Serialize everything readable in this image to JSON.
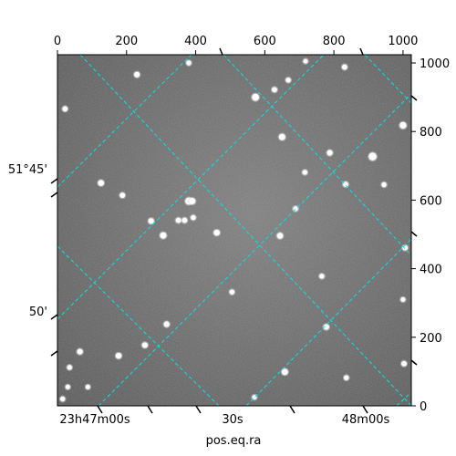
{
  "chart_data": {
    "type": "scatter",
    "title": "",
    "xlabel": "pos.eq.ra",
    "ylabel": "",
    "pixel_axes": {
      "xlim": [
        0,
        1024
      ],
      "ylim": [
        0,
        1024
      ],
      "x_ticks": [
        0,
        200,
        400,
        600,
        800,
        1000
      ],
      "y_ticks": [
        0,
        200,
        400,
        600,
        800,
        1000
      ]
    },
    "world_axes": {
      "ra_tick_labels": [
        "23h47m00s",
        "30s",
        "48m00s"
      ],
      "dec_tick_labels": [
        "51°45'",
        "50'"
      ]
    },
    "image": {
      "background_color": "#6e6e6e",
      "stars": [
        {
          "x": 230,
          "y": 966,
          "m": 1.0
        },
        {
          "x": 380,
          "y": 1000,
          "m": 0.8
        },
        {
          "x": 573,
          "y": 900,
          "m": 1.4
        },
        {
          "x": 628,
          "y": 922,
          "m": 0.9
        },
        {
          "x": 668,
          "y": 950,
          "m": 0.8
        },
        {
          "x": 718,
          "y": 1005,
          "m": 0.7
        },
        {
          "x": 831,
          "y": 988,
          "m": 0.9
        },
        {
          "x": 1000,
          "y": 818,
          "m": 1.3
        },
        {
          "x": 22,
          "y": 866,
          "m": 0.9
        },
        {
          "x": 650,
          "y": 784,
          "m": 1.2
        },
        {
          "x": 788,
          "y": 738,
          "m": 1.0
        },
        {
          "x": 912,
          "y": 727,
          "m": 1.6
        },
        {
          "x": 126,
          "y": 650,
          "m": 1.1
        },
        {
          "x": 188,
          "y": 614,
          "m": 0.9
        },
        {
          "x": 380,
          "y": 597,
          "m": 1.4
        },
        {
          "x": 390,
          "y": 597,
          "m": 1.2
        },
        {
          "x": 271,
          "y": 539,
          "m": 1.0
        },
        {
          "x": 350,
          "y": 541,
          "m": 0.9
        },
        {
          "x": 368,
          "y": 541,
          "m": 0.9
        },
        {
          "x": 393,
          "y": 549,
          "m": 0.8
        },
        {
          "x": 306,
          "y": 497,
          "m": 1.2
        },
        {
          "x": 461,
          "y": 505,
          "m": 1.1
        },
        {
          "x": 644,
          "y": 496,
          "m": 1.1
        },
        {
          "x": 689,
          "y": 575,
          "m": 0.8
        },
        {
          "x": 834,
          "y": 646,
          "m": 0.9
        },
        {
          "x": 716,
          "y": 681,
          "m": 0.8
        },
        {
          "x": 1006,
          "y": 461,
          "m": 0.9
        },
        {
          "x": 765,
          "y": 378,
          "m": 0.8
        },
        {
          "x": 505,
          "y": 332,
          "m": 0.8
        },
        {
          "x": 316,
          "y": 238,
          "m": 1.0
        },
        {
          "x": 65,
          "y": 158,
          "m": 1.0
        },
        {
          "x": 35,
          "y": 112,
          "m": 0.8
        },
        {
          "x": 177,
          "y": 146,
          "m": 1.1
        },
        {
          "x": 253,
          "y": 177,
          "m": 1.0
        },
        {
          "x": 778,
          "y": 230,
          "m": 1.0
        },
        {
          "x": 658,
          "y": 99,
          "m": 1.2
        },
        {
          "x": 836,
          "y": 82,
          "m": 0.8
        },
        {
          "x": 1003,
          "y": 123,
          "m": 0.9
        },
        {
          "x": 15,
          "y": 20,
          "m": 0.8
        },
        {
          "x": 30,
          "y": 55,
          "m": 0.7
        },
        {
          "x": 88,
          "y": 55,
          "m": 0.7
        },
        {
          "x": 570,
          "y": 25,
          "m": 0.7
        },
        {
          "x": 1000,
          "y": 310,
          "m": 0.7
        },
        {
          "x": 945,
          "y": 645,
          "m": 0.8
        }
      ]
    },
    "grid": {
      "color": "#00e5e5",
      "style": "dashed"
    }
  }
}
